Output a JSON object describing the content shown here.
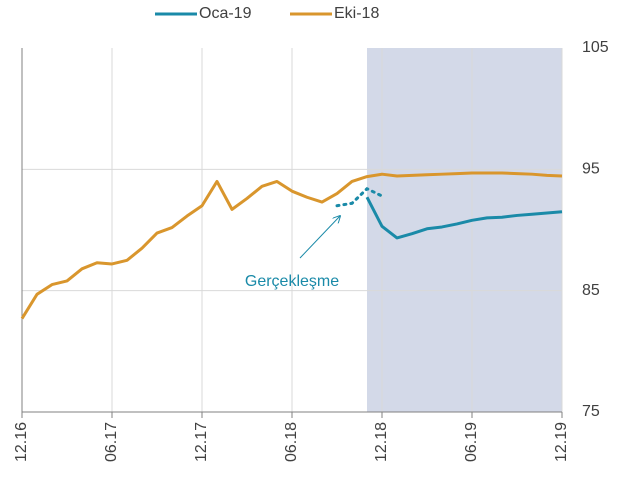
{
  "chart_data": {
    "type": "line",
    "categories": [
      "12.16",
      null,
      null,
      null,
      null,
      null,
      "06.17",
      null,
      null,
      null,
      null,
      null,
      "12.17",
      null,
      null,
      null,
      null,
      null,
      "06.18",
      null,
      null,
      null,
      null,
      null,
      "12.18",
      null,
      null,
      null,
      null,
      null,
      "06.19",
      null,
      null,
      null,
      null,
      null,
      "12.19"
    ],
    "series": [
      {
        "name": "Oca-19",
        "color": "#1a8aa8",
        "values": [
          null,
          null,
          null,
          null,
          null,
          null,
          null,
          null,
          null,
          null,
          null,
          null,
          null,
          null,
          null,
          null,
          null,
          null,
          null,
          null,
          null,
          null,
          null,
          92.7,
          90.3,
          89.35,
          89.7,
          90.1,
          90.25,
          90.5,
          90.8,
          91.0,
          91.05,
          91.2,
          91.3,
          91.4,
          91.5
        ]
      },
      {
        "name": "Eki-18",
        "color": "#d9962d",
        "values": [
          82.7,
          84.7,
          85.5,
          85.8,
          86.8,
          87.3,
          87.2,
          87.5,
          88.5,
          89.75,
          90.2,
          91.15,
          92.0,
          94.0,
          91.7,
          92.6,
          93.6,
          94.0,
          93.2,
          92.7,
          92.3,
          93.0,
          94.0,
          94.4,
          94.6,
          94.45,
          94.5,
          94.55,
          94.6,
          94.65,
          94.7,
          94.7,
          94.7,
          94.65,
          94.6,
          94.5,
          94.45
        ]
      }
    ],
    "annotation": {
      "text": "Gerçekleşme",
      "color": "#1a8aa8",
      "values": [
        null,
        null,
        null,
        null,
        null,
        null,
        null,
        null,
        null,
        null,
        null,
        null,
        null,
        null,
        null,
        null,
        null,
        null,
        null,
        null,
        null,
        92.0,
        92.2,
        93.4,
        92.8,
        null,
        null,
        null,
        null,
        null,
        null,
        null,
        null,
        null,
        null,
        null,
        null
      ]
    },
    "shaded_range": [
      23,
      36
    ],
    "shade_color": "#d3d9e8",
    "ylim": [
      75,
      105
    ],
    "yticks": [
      75,
      85,
      95,
      105
    ],
    "grid": true,
    "legend": "top"
  }
}
